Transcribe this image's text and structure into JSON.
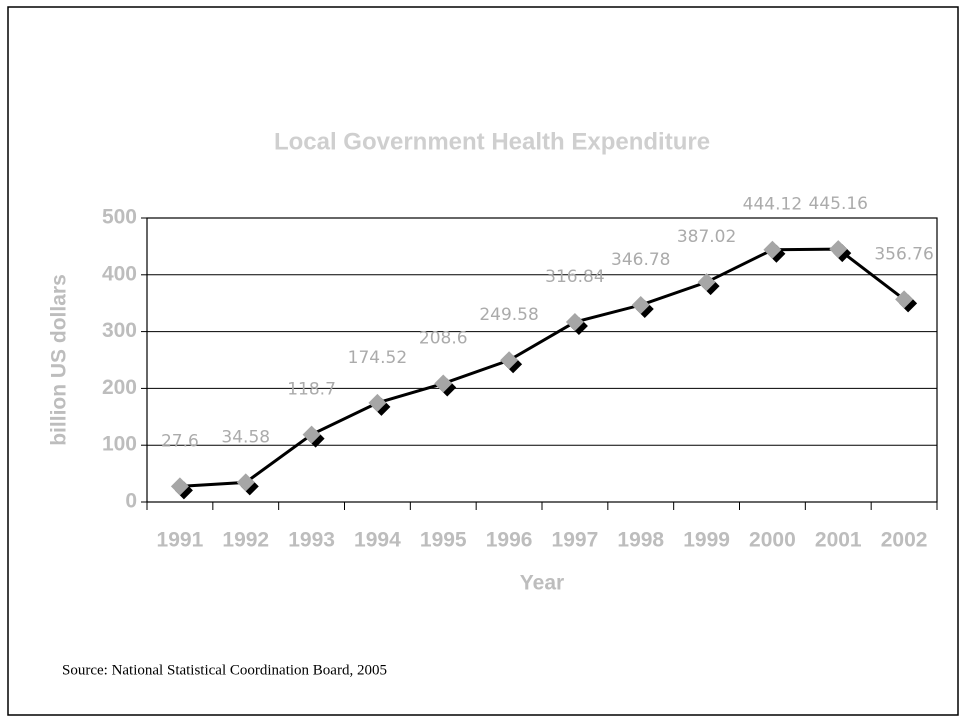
{
  "chart_data": {
    "type": "line",
    "title": "Local Government Health Expenditure",
    "x_label": "Year",
    "y_label": "billion US dollars",
    "categories": [
      "1991",
      "1992",
      "1993",
      "1994",
      "1995",
      "1996",
      "1997",
      "1998",
      "1999",
      "2000",
      "2001",
      "2002"
    ],
    "series": [
      {
        "name": "Local Government Health Expenditure",
        "color": "#000000",
        "marker_color": "#a6a6a6",
        "values": [
          27.6,
          34.58,
          118.7,
          174.52,
          208.6,
          249.58,
          316.84,
          346.78,
          387.02,
          444.12,
          445.16,
          356.76
        ]
      }
    ],
    "ylim": [
      0,
      500
    ],
    "yticks": [
      0,
      100,
      200,
      300,
      400,
      500
    ],
    "grid": true,
    "source": "Source: National Statistical Coordination Board, 2005"
  }
}
